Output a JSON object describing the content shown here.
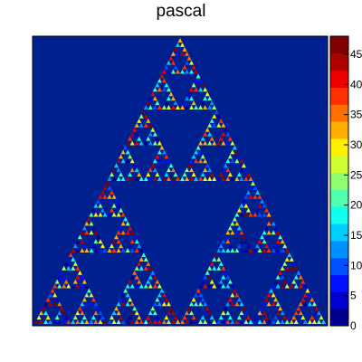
{
  "chart_data": {
    "type": "heatmap",
    "title": "pascal",
    "xlabel": "",
    "ylabel": "",
    "description_of_values": "cell values 0 to 48 arranged in a Sierpinski-like Pascal triangle pattern",
    "color_scale": {
      "min": 0,
      "max": 48,
      "ticks": [
        0,
        5,
        10,
        15,
        20,
        25,
        30,
        35,
        40,
        45
      ],
      "tick_labels": [
        "0",
        "5",
        "10",
        "15",
        "20",
        "25",
        "30",
        "35",
        "40",
        "45"
      ],
      "palette": [
        "#00008f",
        "#0000cf",
        "#0010ff",
        "#0050ff",
        "#0090ff",
        "#00cfff",
        "#10ffef",
        "#50ffaf",
        "#90ff6f",
        "#cfff30",
        "#ffef00",
        "#ffaf00",
        "#ff7000",
        "#ff3000",
        "#ef0000",
        "#af0000",
        "#800000"
      ]
    },
    "background_value_color": "#00208f",
    "grid": false,
    "legend": "right"
  }
}
